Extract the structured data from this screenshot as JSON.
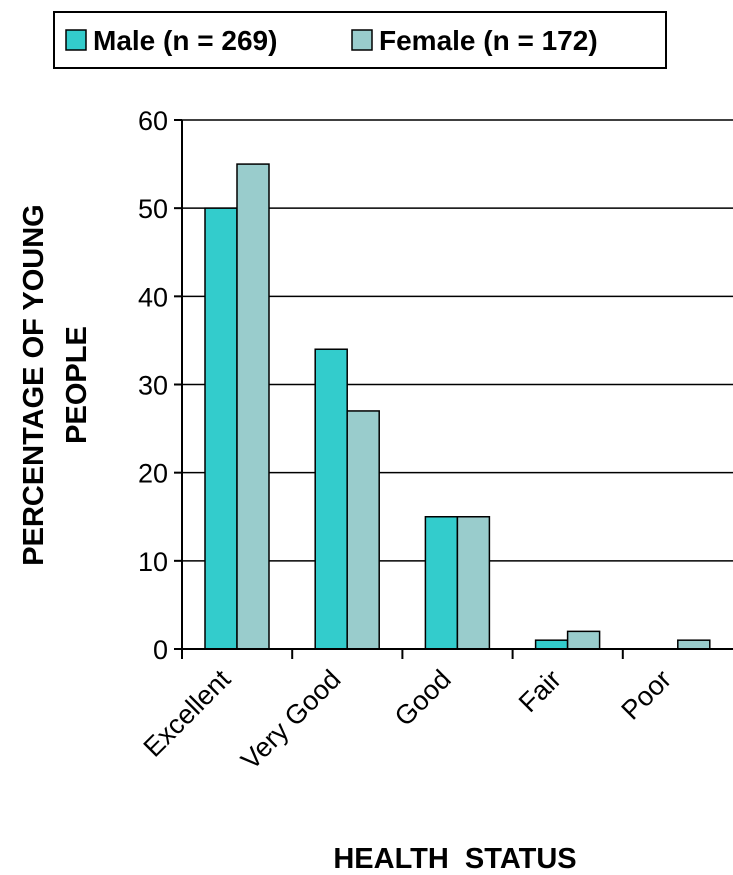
{
  "colors": {
    "male": "#33cccc",
    "female": "#99cccc",
    "grid": "#000000",
    "border": "#000000"
  },
  "chart_data": {
    "type": "bar",
    "categories": [
      "Excellent",
      "Very Good",
      "Good",
      "Fair",
      "Poor"
    ],
    "series": [
      {
        "name": "Male (n = 269)",
        "values": [
          50,
          34,
          15,
          1,
          0
        ]
      },
      {
        "name": "Female (n = 172)",
        "values": [
          55,
          27,
          15,
          2,
          1
        ]
      }
    ],
    "xlabel": "HEALTH  STATUS",
    "ylabel_line1": "PERCENTAGE OF YOUNG",
    "ylabel_line2": "PEOPLE",
    "ylim": [
      0,
      60
    ],
    "yticks": [
      0,
      10,
      20,
      30,
      40,
      50,
      60
    ],
    "grid": true,
    "legend_position": "top"
  }
}
